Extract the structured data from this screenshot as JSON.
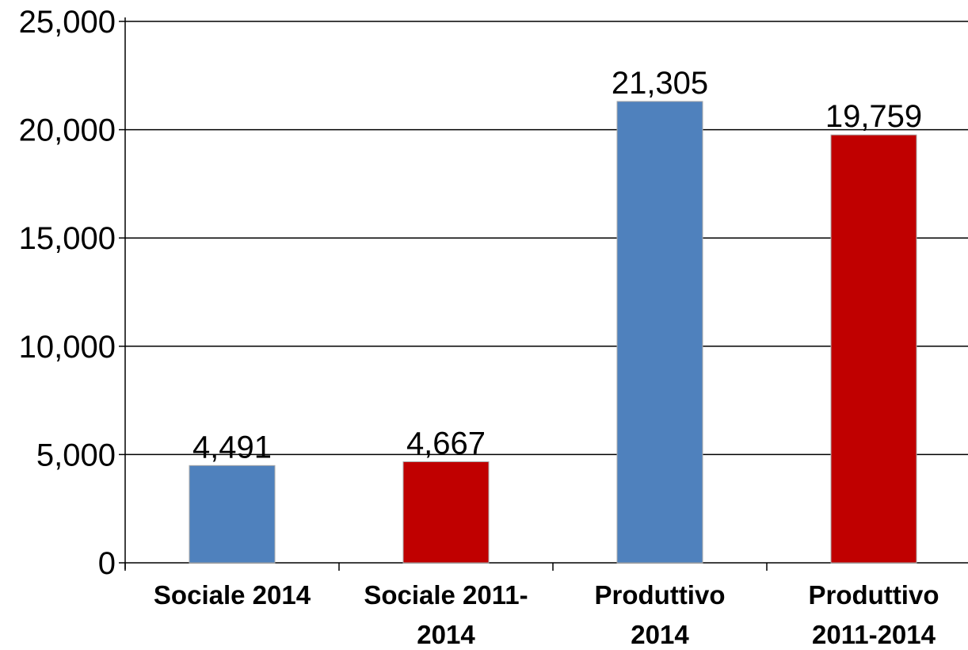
{
  "chart_data": {
    "type": "bar",
    "categories": [
      [
        "Sociale 2014"
      ],
      [
        "Sociale 2011-",
        "2014"
      ],
      [
        "Produttivo",
        "2014"
      ],
      [
        "Produttivo",
        "2011-2014"
      ]
    ],
    "values": [
      4491,
      4667,
      21305,
      19759
    ],
    "value_labels": [
      "4,491",
      "4,667",
      "21,305",
      "19,759"
    ],
    "bar_colors": [
      "#4f81bd",
      "#c00000",
      "#4f81bd",
      "#c00000"
    ],
    "ylim": [
      0,
      25000
    ],
    "yticks": [
      0,
      5000,
      10000,
      15000,
      20000,
      25000
    ],
    "ytick_labels": [
      "0",
      "5,000",
      "10,000",
      "15,000",
      "20,000",
      "25,000"
    ],
    "grid": true,
    "title": "",
    "xlabel": "",
    "ylabel": ""
  }
}
